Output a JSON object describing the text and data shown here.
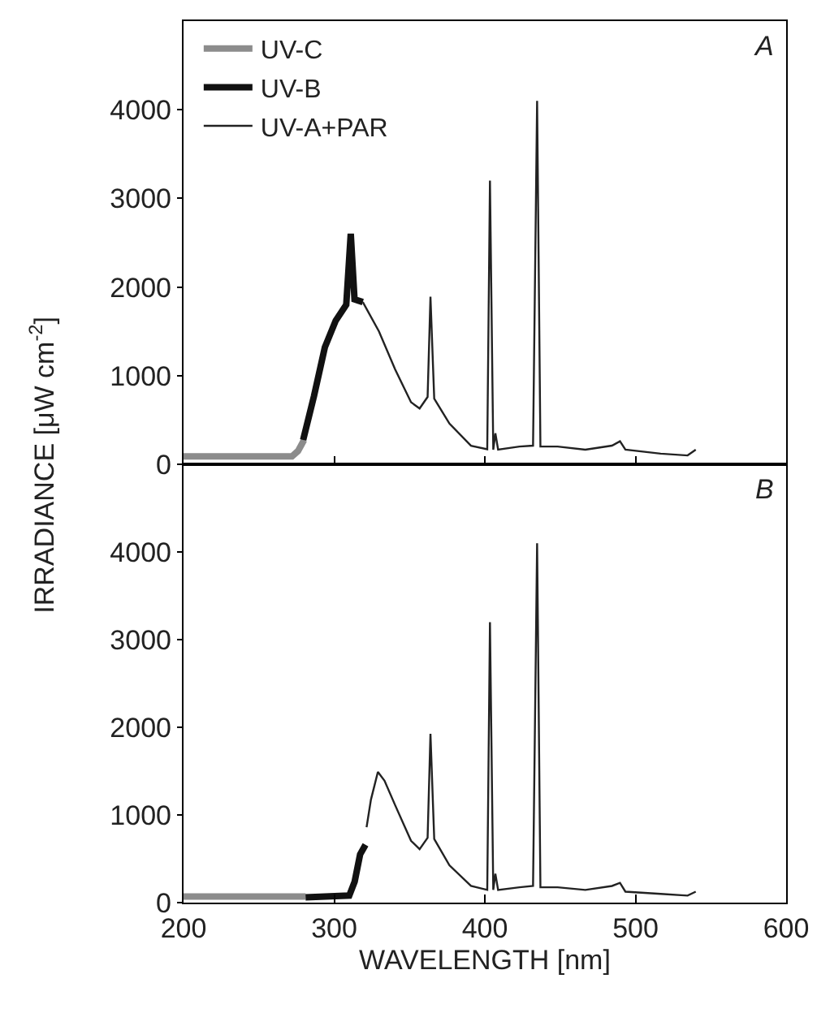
{
  "chart_data": [
    {
      "type": "line",
      "ylabel": "IRRADIANCE [μW cm$^{-2}$]",
      "annotations": [
        "A"
      ],
      "xlim": [
        200,
        600
      ],
      "xticks": [
        200,
        300,
        400,
        500,
        600
      ],
      "ylim": [
        0,
        5000
      ],
      "yticks": [
        0,
        1000,
        2000,
        3000,
        4000
      ],
      "tick_labels": "y",
      "legend": "top left",
      "grid": false,
      "series": [
        {
          "name": "UV-C",
          "color": "#8c8c8c",
          "x": [
            200,
            240,
            272,
            276,
            280
          ],
          "values": [
            90,
            90,
            90,
            150,
            275
          ]
        },
        {
          "name": "UV-B",
          "color": "#111111",
          "x": [
            279.4,
            286.6,
            293.8,
            301,
            308,
            311,
            313.5,
            319
          ],
          "values": [
            275,
            770,
            1320,
            1620,
            1800,
            2600,
            1860,
            1830
          ]
        },
        {
          "name": "UV-A+PAR",
          "color": "#222222",
          "x": [
            319,
            329.7,
            340.5,
            351,
            356.7,
            362,
            363.9,
            366.4,
            376.5,
            390.8,
            401.6,
            403.4,
            405.6,
            407,
            408.8,
            423,
            432,
            434.7,
            436.9,
            448.3,
            466.7,
            484.4,
            489.7,
            493.3,
            516.7,
            534.6,
            540
          ],
          "values": [
            1830,
            1500,
            1070,
            700,
            630,
            760,
            1890,
            740,
            460,
            210,
            170,
            3200,
            165,
            350,
            165,
            200,
            210,
            4100,
            200,
            200,
            165,
            210,
            260,
            165,
            120,
            100,
            165
          ]
        }
      ]
    },
    {
      "type": "line",
      "xlabel": "WAVELENGTH [nm]",
      "annotations": [
        "B"
      ],
      "xlim": [
        200,
        600
      ],
      "xticks": [
        200,
        300,
        400,
        500,
        600
      ],
      "ylim": [
        0,
        5000
      ],
      "yticks": [
        0,
        1000,
        2000,
        3000,
        4000
      ],
      "legend": false,
      "grid": false,
      "series": [
        {
          "color": "#8c8c8c",
          "x": [
            200,
            240,
            281
          ],
          "values": [
            70,
            70,
            70
          ]
        },
        {
          "color": "#111111",
          "x": [
            281,
            310,
            313.6,
            317.2,
            320.8
          ],
          "values": [
            60,
            80,
            240,
            550,
            660
          ]
        },
        {
          "color": "#222222",
          "x": [
            321.5,
            324.4,
            329,
            333.4,
            340.5,
            351,
            356.7,
            362,
            363.9,
            366.4,
            376.5,
            390.8,
            401.6,
            403.4,
            405.6,
            407,
            408.8,
            423,
            432,
            434.7,
            436.9,
            448.3,
            466.7,
            484.4,
            489.7,
            493.3,
            516.7,
            534.6,
            540
          ],
          "values": [
            860,
            1175,
            1490,
            1390,
            1110,
            705,
            610,
            740,
            1925,
            725,
            425,
            190,
            145,
            3200,
            145,
            330,
            145,
            175,
            190,
            4100,
            175,
            175,
            145,
            190,
            225,
            125,
            100,
            80,
            125
          ]
        }
      ]
    }
  ]
}
